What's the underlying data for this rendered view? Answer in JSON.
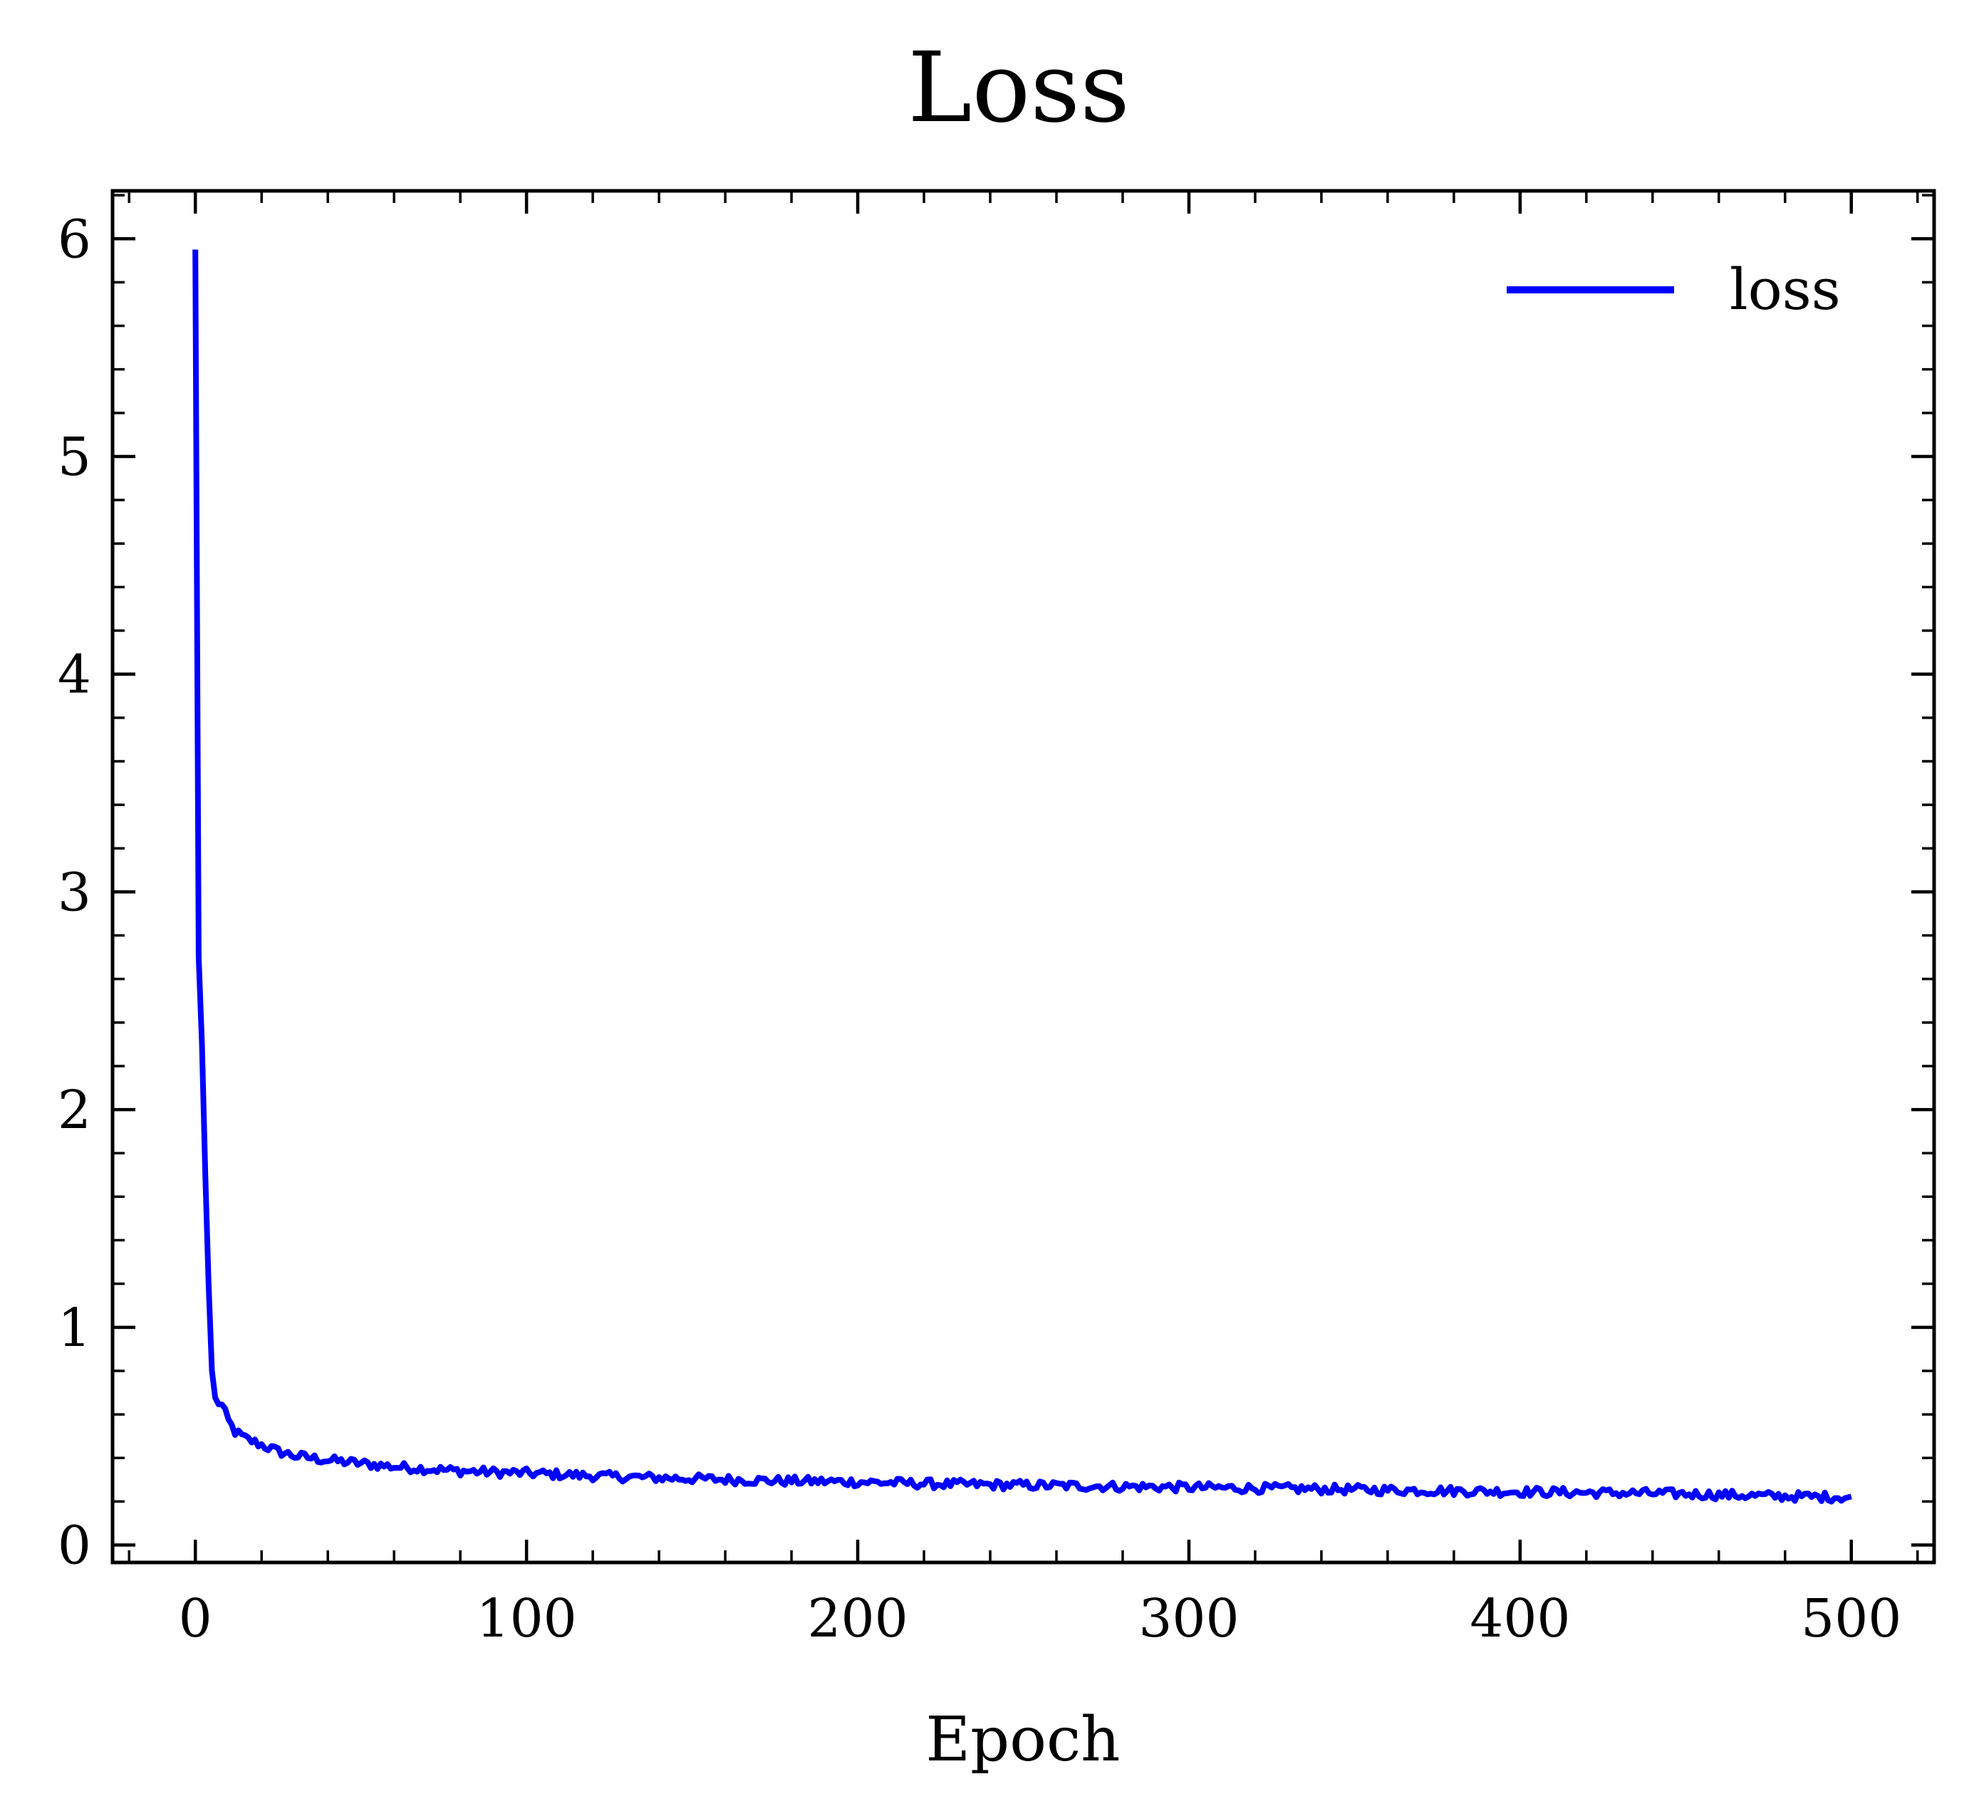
{
  "chart_data": {
    "type": "line",
    "title": "Loss",
    "xlabel": "Epoch",
    "ylabel": "",
    "xlim": [
      -25,
      525
    ],
    "ylim": [
      -0.08,
      6.22
    ],
    "xticks": [
      0,
      100,
      200,
      300,
      400,
      500
    ],
    "xtick_labels": [
      "0",
      "100",
      "200",
      "300",
      "400",
      "500"
    ],
    "yticks": [
      0,
      1,
      2,
      3,
      4,
      5,
      6
    ],
    "ytick_labels": [
      "0",
      "1",
      "2",
      "3",
      "4",
      "5",
      "6"
    ],
    "grid": false,
    "legend_position": "top-right",
    "series": [
      {
        "name": "loss",
        "color": "#0000ff",
        "keypoints": [
          [
            0,
            5.95
          ],
          [
            1,
            2.7
          ],
          [
            2,
            2.3
          ],
          [
            3,
            1.7
          ],
          [
            4,
            1.2
          ],
          [
            5,
            0.8
          ],
          [
            6,
            0.67
          ],
          [
            8,
            0.64
          ],
          [
            10,
            0.57
          ],
          [
            12,
            0.52
          ],
          [
            15,
            0.49
          ],
          [
            20,
            0.46
          ],
          [
            25,
            0.43
          ],
          [
            30,
            0.41
          ],
          [
            40,
            0.39
          ],
          [
            50,
            0.375
          ],
          [
            60,
            0.36
          ],
          [
            70,
            0.35
          ],
          [
            80,
            0.34
          ],
          [
            100,
            0.33
          ],
          [
            125,
            0.315
          ],
          [
            150,
            0.305
          ],
          [
            175,
            0.295
          ],
          [
            200,
            0.29
          ],
          [
            225,
            0.28
          ],
          [
            250,
            0.275
          ],
          [
            275,
            0.27
          ],
          [
            300,
            0.265
          ],
          [
            325,
            0.26
          ],
          [
            350,
            0.255
          ],
          [
            375,
            0.25
          ],
          [
            400,
            0.245
          ],
          [
            425,
            0.24
          ],
          [
            450,
            0.235
          ],
          [
            475,
            0.225
          ],
          [
            500,
            0.22
          ]
        ],
        "noise_amplitude": 0.022,
        "smooth_from_epoch": 6
      }
    ]
  }
}
